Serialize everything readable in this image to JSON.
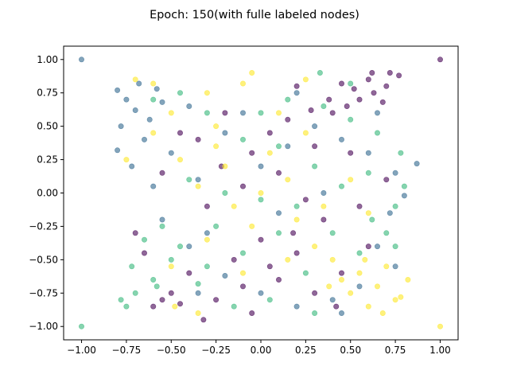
{
  "chart_data": {
    "type": "scatter",
    "title": "Epoch: 150(with fulle labeled nodes)",
    "xlabel": "",
    "ylabel": "",
    "xlim": [
      -1.1,
      1.1
    ],
    "ylim": [
      -1.1,
      1.1
    ],
    "xticks": [
      -1.0,
      -0.75,
      -0.5,
      -0.25,
      0.0,
      0.25,
      0.5,
      0.75,
      1.0
    ],
    "yticks": [
      -1.0,
      -0.75,
      -0.5,
      -0.25,
      0.0,
      0.25,
      0.5,
      0.75,
      1.0
    ],
    "xtick_labels": [
      "−1.00",
      "−0.75",
      "−0.50",
      "−0.25",
      "0.00",
      "0.25",
      "0.50",
      "0.75",
      "1.00"
    ],
    "ytick_labels": [
      "−1.00",
      "−0.75",
      "−0.50",
      "−0.25",
      "0.00",
      "0.25",
      "0.50",
      "0.75",
      "1.00"
    ],
    "grid": false,
    "legend": false,
    "marker_alpha": 0.6,
    "series": [
      {
        "color": "#440154",
        "points": [
          [
            1.0,
            1.0
          ],
          [
            0.45,
            0.82
          ],
          [
            0.52,
            0.78
          ],
          [
            0.6,
            0.85
          ],
          [
            0.7,
            0.8
          ],
          [
            0.77,
            0.88
          ],
          [
            0.55,
            0.7
          ],
          [
            0.63,
            0.75
          ],
          [
            0.48,
            0.65
          ],
          [
            0.68,
            0.68
          ],
          [
            0.4,
            0.6
          ],
          [
            0.2,
            0.8
          ],
          [
            0.15,
            0.55
          ],
          [
            0.3,
            0.35
          ],
          [
            0.05,
            0.45
          ],
          [
            -0.05,
            0.3
          ],
          [
            -0.2,
            0.6
          ],
          [
            -0.35,
            0.4
          ],
          [
            0.1,
            0.15
          ],
          [
            -0.1,
            0.05
          ],
          [
            0.25,
            -0.05
          ],
          [
            -0.3,
            -0.1
          ],
          [
            0.35,
            -0.2
          ],
          [
            0.0,
            -0.35
          ],
          [
            -0.15,
            -0.5
          ],
          [
            0.05,
            -0.55
          ],
          [
            0.2,
            -0.45
          ],
          [
            -0.4,
            -0.6
          ],
          [
            -0.55,
            -0.8
          ],
          [
            -0.45,
            -0.83
          ],
          [
            -0.6,
            -0.85
          ],
          [
            -0.5,
            -0.75
          ],
          [
            -0.65,
            -0.45
          ],
          [
            -0.7,
            -0.3
          ],
          [
            -0.1,
            -0.7
          ],
          [
            0.1,
            -0.65
          ],
          [
            -0.25,
            -0.8
          ],
          [
            0.3,
            -0.75
          ],
          [
            0.45,
            -0.6
          ],
          [
            0.6,
            -0.4
          ],
          [
            0.55,
            -0.1
          ],
          [
            0.7,
            0.1
          ],
          [
            0.5,
            0.3
          ],
          [
            -0.55,
            0.15
          ],
          [
            -0.45,
            0.45
          ],
          [
            0.38,
            0.7
          ],
          [
            0.62,
            0.9
          ],
          [
            0.72,
            0.9
          ],
          [
            0.28,
            0.62
          ],
          [
            -0.22,
            0.2
          ],
          [
            0.18,
            -0.3
          ],
          [
            -0.05,
            -0.9
          ],
          [
            0.42,
            -0.85
          ],
          [
            -0.32,
            -0.95
          ]
        ]
      },
      {
        "color": "#31688e",
        "points": [
          [
            -1.0,
            1.0
          ],
          [
            -0.8,
            0.77
          ],
          [
            -0.75,
            0.7
          ],
          [
            -0.7,
            0.62
          ],
          [
            -0.62,
            0.55
          ],
          [
            -0.78,
            0.5
          ],
          [
            -0.55,
            0.68
          ],
          [
            -0.65,
            0.4
          ],
          [
            -0.5,
            0.3
          ],
          [
            -0.72,
            0.2
          ],
          [
            -0.6,
            0.05
          ],
          [
            -0.4,
            0.65
          ],
          [
            -0.35,
            0.1
          ],
          [
            -0.2,
            0.45
          ],
          [
            0.0,
            0.2
          ],
          [
            0.15,
            0.35
          ],
          [
            0.3,
            0.5
          ],
          [
            0.45,
            0.4
          ],
          [
            0.6,
            0.3
          ],
          [
            0.75,
            0.15
          ],
          [
            0.87,
            0.22
          ],
          [
            0.8,
            -0.02
          ],
          [
            0.72,
            -0.15
          ],
          [
            0.65,
            -0.4
          ],
          [
            0.75,
            -0.55
          ],
          [
            0.55,
            -0.7
          ],
          [
            0.4,
            -0.8
          ],
          [
            0.2,
            -0.85
          ],
          [
            0.0,
            -0.75
          ],
          [
            -0.2,
            -0.62
          ],
          [
            -0.4,
            -0.4
          ],
          [
            -0.55,
            -0.2
          ],
          [
            -0.3,
            -0.3
          ],
          [
            0.1,
            -0.15
          ],
          [
            0.35,
            0.0
          ],
          [
            -0.1,
            0.6
          ],
          [
            0.2,
            0.75
          ],
          [
            -0.35,
            -0.75
          ],
          [
            0.45,
            -0.9
          ],
          [
            0.65,
            0.6
          ],
          [
            -0.8,
            0.32
          ],
          [
            -0.68,
            0.82
          ],
          [
            -0.58,
            0.78
          ]
        ]
      },
      {
        "color": "#35b779",
        "points": [
          [
            -1.0,
            -1.0
          ],
          [
            -0.75,
            -0.85
          ],
          [
            -0.7,
            -0.75
          ],
          [
            -0.6,
            -0.65
          ],
          [
            -0.72,
            -0.55
          ],
          [
            -0.5,
            -0.5
          ],
          [
            -0.65,
            -0.35
          ],
          [
            -0.55,
            -0.25
          ],
          [
            -0.45,
            -0.4
          ],
          [
            -0.3,
            -0.55
          ],
          [
            -0.1,
            -0.45
          ],
          [
            0.1,
            -0.3
          ],
          [
            0.25,
            -0.6
          ],
          [
            0.4,
            -0.3
          ],
          [
            0.55,
            -0.45
          ],
          [
            0.7,
            -0.3
          ],
          [
            0.75,
            -0.1
          ],
          [
            0.8,
            0.05
          ],
          [
            0.6,
            0.15
          ],
          [
            0.45,
            0.05
          ],
          [
            0.3,
            0.2
          ],
          [
            0.1,
            0.35
          ],
          [
            -0.1,
            0.4
          ],
          [
            -0.3,
            0.6
          ],
          [
            -0.45,
            0.75
          ],
          [
            -0.6,
            0.7
          ],
          [
            0.0,
            0.6
          ],
          [
            0.15,
            0.7
          ],
          [
            0.35,
            0.65
          ],
          [
            0.5,
            0.55
          ],
          [
            0.65,
            0.45
          ],
          [
            0.78,
            0.3
          ],
          [
            -0.2,
            0.0
          ],
          [
            -0.4,
            0.1
          ],
          [
            0.2,
            -0.1
          ],
          [
            0.0,
            -0.05
          ],
          [
            -0.25,
            -0.25
          ],
          [
            0.05,
            -0.8
          ],
          [
            0.3,
            -0.9
          ],
          [
            -0.15,
            -0.85
          ],
          [
            -0.78,
            -0.8
          ],
          [
            -0.58,
            -0.7
          ],
          [
            -0.35,
            -0.68
          ],
          [
            0.33,
            0.9
          ],
          [
            0.5,
            0.82
          ],
          [
            0.75,
            -0.4
          ],
          [
            0.62,
            -0.2
          ]
        ]
      },
      {
        "color": "#fde725",
        "points": [
          [
            1.0,
            -1.0
          ],
          [
            0.55,
            -0.6
          ],
          [
            0.65,
            -0.7
          ],
          [
            0.75,
            -0.8
          ],
          [
            0.7,
            -0.55
          ],
          [
            0.5,
            -0.75
          ],
          [
            0.4,
            -0.5
          ],
          [
            0.6,
            -0.85
          ],
          [
            0.45,
            -0.65
          ],
          [
            0.3,
            -0.4
          ],
          [
            0.2,
            -0.2
          ],
          [
            0.0,
            0.0
          ],
          [
            -0.2,
            0.2
          ],
          [
            -0.35,
            0.05
          ],
          [
            -0.45,
            0.25
          ],
          [
            -0.6,
            0.45
          ],
          [
            -0.75,
            0.25
          ],
          [
            -0.7,
            0.85
          ],
          [
            -0.6,
            0.82
          ],
          [
            -0.5,
            0.6
          ],
          [
            -0.3,
            0.75
          ],
          [
            -0.1,
            0.82
          ],
          [
            0.1,
            0.6
          ],
          [
            0.25,
            0.45
          ],
          [
            0.05,
            0.3
          ],
          [
            -0.15,
            -0.1
          ],
          [
            -0.3,
            -0.35
          ],
          [
            -0.5,
            -0.55
          ],
          [
            -0.1,
            -0.6
          ],
          [
            0.15,
            -0.5
          ],
          [
            0.35,
            -0.1
          ],
          [
            0.5,
            0.1
          ],
          [
            0.6,
            -0.15
          ],
          [
            -0.25,
            0.35
          ],
          [
            0.15,
            0.1
          ],
          [
            -0.05,
            -0.25
          ],
          [
            0.78,
            -0.78
          ],
          [
            0.82,
            -0.65
          ],
          [
            0.68,
            -0.9
          ],
          [
            -0.35,
            -0.9
          ],
          [
            -0.48,
            -0.85
          ],
          [
            0.25,
            0.85
          ],
          [
            -0.05,
            0.9
          ],
          [
            -0.25,
            0.5
          ],
          [
            0.38,
            -0.7
          ],
          [
            0.58,
            -0.5
          ]
        ]
      }
    ]
  }
}
